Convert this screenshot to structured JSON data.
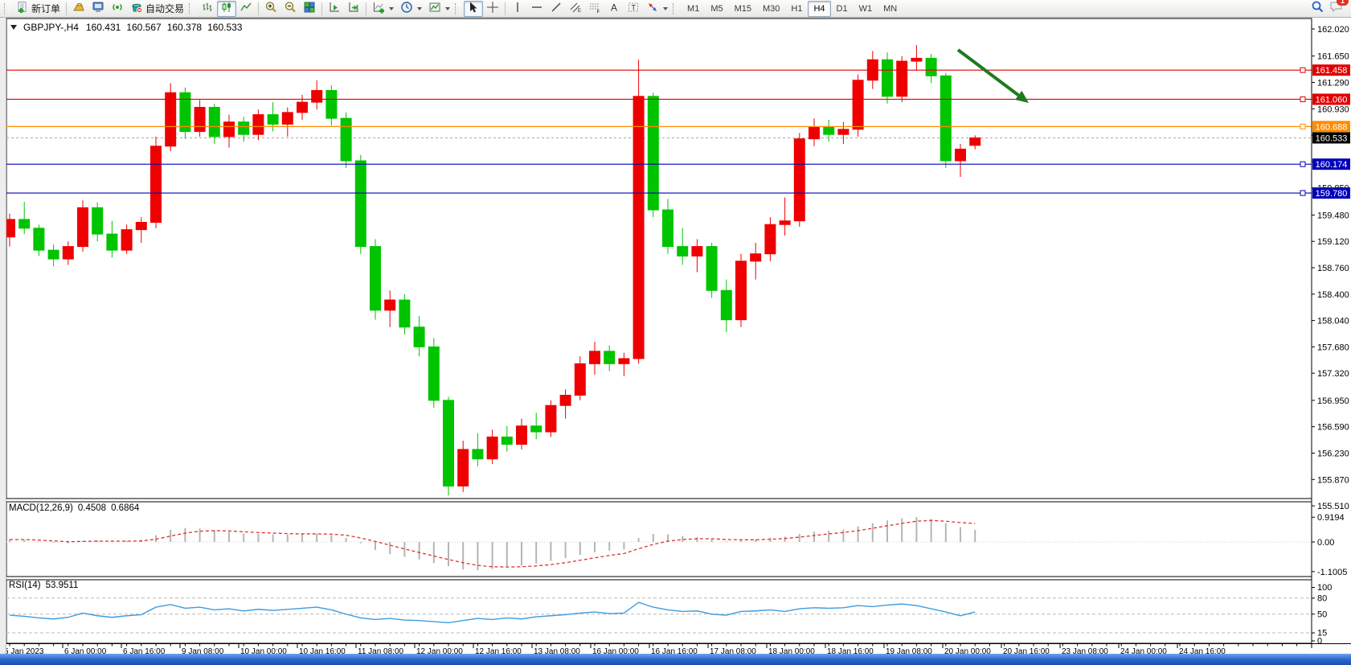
{
  "toolbar": {
    "new_order_label": "新订单",
    "autotrade_label": "自动交易",
    "timeframes": [
      "M1",
      "M5",
      "M15",
      "M30",
      "H1",
      "H4",
      "D1",
      "W1",
      "MN"
    ],
    "active_timeframe": "H4",
    "notification_count": "1",
    "icons": [
      "new-order",
      "gold-ingot",
      "terminal",
      "signals",
      "autotrade",
      "bar-chart",
      "candlestick-chart",
      "line-chart",
      "zoom-in",
      "zoom-out",
      "tile-windows",
      "auto-scroll",
      "chart-shift",
      "add-indicator",
      "periods",
      "templates",
      "cursor",
      "crosshair",
      "vertical-line",
      "horizontal-line",
      "trend-line",
      "equidistant-channel",
      "fibonacci",
      "text",
      "text-label",
      "arrows",
      "search",
      "chat"
    ]
  },
  "chart": {
    "title": {
      "symbol": "GBPJPY-,H4",
      "open": "160.431",
      "high": "160.567",
      "low": "160.378",
      "close": "160.533"
    },
    "price_ticks": [
      "162.020",
      "161.650",
      "161.290",
      "160.930",
      "160.570",
      "160.210",
      "159.850",
      "159.480",
      "159.120",
      "158.760",
      "158.400",
      "158.040",
      "157.680",
      "157.320",
      "156.950",
      "156.590",
      "156.230",
      "155.870",
      "155.510"
    ],
    "time_labels": [
      "5 Jan 2023",
      "6 Jan 00:00",
      "6 Jan 16:00",
      "9 Jan 08:00",
      "10 Jan 00:00",
      "10 Jan 16:00",
      "11 Jan 08:00",
      "12 Jan 00:00",
      "12 Jan 16:00",
      "13 Jan 08:00",
      "16 Jan 00:00",
      "16 Jan 16:00",
      "17 Jan 08:00",
      "18 Jan 00:00",
      "18 Jan 16:00",
      "19 Jan 08:00",
      "20 Jan 00:00",
      "20 Jan 16:00",
      "23 Jan 08:00",
      "24 Jan 00:00",
      "24 Jan 16:00"
    ],
    "hlines": [
      {
        "price": 161.458,
        "label": "161.458",
        "color": "#e00000"
      },
      {
        "price": 161.06,
        "label": "161.060",
        "color": "#e00000"
      },
      {
        "price": 160.688,
        "label": "160.688",
        "color": "#ff8c00"
      },
      {
        "price": 160.174,
        "label": "160.174",
        "color": "#0000bb"
      },
      {
        "price": 159.78,
        "label": "159.780",
        "color": "#0000bb"
      }
    ],
    "current_price": {
      "value": 160.533,
      "label": "160.533",
      "bg": "#000000"
    },
    "colors": {
      "up": "#ee0000",
      "down": "#00c400",
      "background": "#ffffff",
      "arrow": "#1f7a1f"
    },
    "annotation_arrow": {
      "from": [
        1192,
        62
      ],
      "to": [
        1280,
        128
      ]
    },
    "candles": [
      [
        159.18,
        159.5,
        159.05,
        159.42
      ],
      [
        159.42,
        159.66,
        159.22,
        159.3
      ],
      [
        159.3,
        159.35,
        158.92,
        159.0
      ],
      [
        159.0,
        159.08,
        158.78,
        158.88
      ],
      [
        158.88,
        159.12,
        158.8,
        159.05
      ],
      [
        159.05,
        159.68,
        158.98,
        159.58
      ],
      [
        159.58,
        159.65,
        159.12,
        159.22
      ],
      [
        159.22,
        159.4,
        158.9,
        159.0
      ],
      [
        159.0,
        159.35,
        158.95,
        159.28
      ],
      [
        159.28,
        159.45,
        159.1,
        159.38
      ],
      [
        159.38,
        160.55,
        159.3,
        160.42
      ],
      [
        160.42,
        161.28,
        160.35,
        161.15
      ],
      [
        161.15,
        161.22,
        160.52,
        160.62
      ],
      [
        160.62,
        161.05,
        160.55,
        160.95
      ],
      [
        160.95,
        161.0,
        160.45,
        160.55
      ],
      [
        160.55,
        160.85,
        160.4,
        160.75
      ],
      [
        160.75,
        160.82,
        160.48,
        160.58
      ],
      [
        160.58,
        160.92,
        160.5,
        160.85
      ],
      [
        160.85,
        161.02,
        160.62,
        160.72
      ],
      [
        160.72,
        160.95,
        160.55,
        160.88
      ],
      [
        160.88,
        161.12,
        160.78,
        161.02
      ],
      [
        161.02,
        161.32,
        160.92,
        161.18
      ],
      [
        161.18,
        161.25,
        160.7,
        160.8
      ],
      [
        160.8,
        160.88,
        160.12,
        160.22
      ],
      [
        160.22,
        160.3,
        158.95,
        159.05
      ],
      [
        159.05,
        159.15,
        158.05,
        158.18
      ],
      [
        158.18,
        158.45,
        157.95,
        158.32
      ],
      [
        158.32,
        158.4,
        157.85,
        157.95
      ],
      [
        157.95,
        158.1,
        157.55,
        157.68
      ],
      [
        157.68,
        157.8,
        156.85,
        156.95
      ],
      [
        156.95,
        157.0,
        155.65,
        155.78
      ],
      [
        155.78,
        156.4,
        155.7,
        156.28
      ],
      [
        156.28,
        156.5,
        156.05,
        156.15
      ],
      [
        156.15,
        156.55,
        156.08,
        156.45
      ],
      [
        156.45,
        156.6,
        156.25,
        156.35
      ],
      [
        156.35,
        156.7,
        156.28,
        156.6
      ],
      [
        156.6,
        156.78,
        156.42,
        156.52
      ],
      [
        156.52,
        156.95,
        156.45,
        156.88
      ],
      [
        156.88,
        157.1,
        156.7,
        157.02
      ],
      [
        157.02,
        157.55,
        156.95,
        157.45
      ],
      [
        157.45,
        157.75,
        157.3,
        157.62
      ],
      [
        157.62,
        157.7,
        157.35,
        157.45
      ],
      [
        157.45,
        157.6,
        157.28,
        157.52
      ],
      [
        157.52,
        161.6,
        157.45,
        161.1
      ],
      [
        161.1,
        161.15,
        159.45,
        159.55
      ],
      [
        159.55,
        159.7,
        158.95,
        159.05
      ],
      [
        159.05,
        159.3,
        158.8,
        158.92
      ],
      [
        158.92,
        159.15,
        158.7,
        159.05
      ],
      [
        159.05,
        159.1,
        158.35,
        158.45
      ],
      [
        158.45,
        158.6,
        157.88,
        158.05
      ],
      [
        158.05,
        158.95,
        157.95,
        158.85
      ],
      [
        158.85,
        159.1,
        158.6,
        158.95
      ],
      [
        158.95,
        159.45,
        158.85,
        159.35
      ],
      [
        159.35,
        159.72,
        159.2,
        159.4
      ],
      [
        159.4,
        160.6,
        159.32,
        160.52
      ],
      [
        160.52,
        160.8,
        160.42,
        160.68
      ],
      [
        160.68,
        160.78,
        160.48,
        160.58
      ],
      [
        160.58,
        160.75,
        160.45,
        160.65
      ],
      [
        160.65,
        161.4,
        160.55,
        161.32
      ],
      [
        161.32,
        161.72,
        161.2,
        161.6
      ],
      [
        161.6,
        161.7,
        161.0,
        161.1
      ],
      [
        161.1,
        161.65,
        161.02,
        161.58
      ],
      [
        161.58,
        161.8,
        161.45,
        161.62
      ],
      [
        161.62,
        161.68,
        161.28,
        161.38
      ],
      [
        161.38,
        161.42,
        160.12,
        160.22
      ],
      [
        160.22,
        160.45,
        160.0,
        160.38
      ],
      [
        160.431,
        160.567,
        160.378,
        160.533
      ]
    ]
  },
  "macd": {
    "label": "MACD(12,26,9)",
    "value_main": "0.4508",
    "value_signal": "0.6864",
    "axis": [
      "0.9194",
      "0.00",
      "-1.1005"
    ],
    "histogram": [
      0.1,
      0.08,
      0.02,
      -0.03,
      -0.05,
      0.04,
      0.06,
      0.02,
      0.05,
      0.08,
      0.25,
      0.45,
      0.52,
      0.5,
      0.44,
      0.38,
      0.32,
      0.3,
      0.28,
      0.27,
      0.28,
      0.3,
      0.26,
      0.15,
      -0.05,
      -0.3,
      -0.45,
      -0.55,
      -0.65,
      -0.78,
      -0.9,
      -1.02,
      -1.05,
      -1.0,
      -0.95,
      -0.88,
      -0.8,
      -0.7,
      -0.6,
      -0.48,
      -0.38,
      -0.32,
      -0.28,
      0.15,
      0.3,
      0.28,
      0.22,
      0.18,
      0.1,
      0.02,
      0.05,
      0.1,
      0.16,
      0.2,
      0.3,
      0.38,
      0.42,
      0.46,
      0.58,
      0.7,
      0.8,
      0.88,
      0.92,
      0.85,
      0.7,
      0.55,
      0.45
    ],
    "signal": [
      0.09,
      0.09,
      0.07,
      0.04,
      0.01,
      0.02,
      0.03,
      0.03,
      0.03,
      0.04,
      0.1,
      0.22,
      0.33,
      0.4,
      0.42,
      0.41,
      0.38,
      0.35,
      0.33,
      0.31,
      0.3,
      0.3,
      0.29,
      0.25,
      0.15,
      0.02,
      -0.12,
      -0.26,
      -0.39,
      -0.52,
      -0.65,
      -0.77,
      -0.87,
      -0.92,
      -0.93,
      -0.92,
      -0.89,
      -0.84,
      -0.77,
      -0.68,
      -0.59,
      -0.5,
      -0.43,
      -0.25,
      -0.09,
      0.03,
      0.09,
      0.12,
      0.12,
      0.09,
      0.08,
      0.08,
      0.1,
      0.13,
      0.18,
      0.24,
      0.3,
      0.35,
      0.42,
      0.51,
      0.6,
      0.69,
      0.77,
      0.8,
      0.77,
      0.72,
      0.6864
    ]
  },
  "rsi": {
    "label": "RSI(14)",
    "value": "53.9511",
    "levels": [
      "100",
      "80",
      "50",
      "15",
      "0"
    ],
    "dashed_levels": [
      80,
      50,
      15
    ],
    "line": [
      48,
      46,
      43,
      41,
      44,
      52,
      47,
      44,
      47,
      49,
      63,
      68,
      61,
      63,
      58,
      60,
      56,
      59,
      57,
      59,
      61,
      63,
      58,
      50,
      43,
      40,
      42,
      39,
      38,
      36,
      34,
      38,
      42,
      40,
      43,
      41,
      45,
      47,
      49,
      52,
      54,
      51,
      52,
      72,
      63,
      58,
      55,
      56,
      50,
      48,
      55,
      56,
      58,
      55,
      60,
      62,
      61,
      62,
      66,
      64,
      67,
      69,
      66,
      60,
      54,
      47,
      54
    ]
  }
}
